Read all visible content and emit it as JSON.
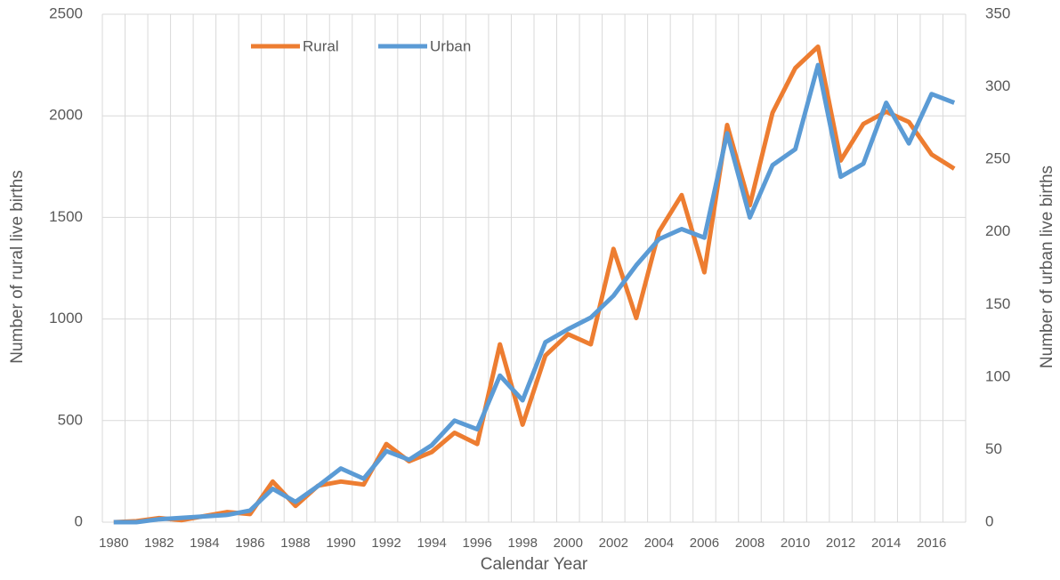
{
  "chart_data": {
    "type": "line",
    "x_label": "Calendar Year",
    "y_label": "Number of rural live births",
    "y2_label": "Number of urban live births",
    "categories": [
      "1980",
      null,
      "1982",
      null,
      "1984",
      null,
      "1986",
      null,
      "1988",
      null,
      "1990",
      null,
      "1992",
      null,
      "1994",
      null,
      "1996",
      null,
      "1998",
      null,
      "2000",
      null,
      "2002",
      null,
      "2004",
      null,
      "2006",
      null,
      "2008",
      null,
      "2010",
      null,
      "2012",
      null,
      "2014",
      null,
      "2016",
      null
    ],
    "series": [
      {
        "name": "Rural",
        "color": "#ed7d31",
        "axis": "y",
        "values": [
          0,
          5,
          20,
          10,
          30,
          50,
          40,
          200,
          80,
          180,
          200,
          185,
          385,
          300,
          345,
          440,
          385,
          875,
          480,
          820,
          925,
          875,
          1345,
          1005,
          1430,
          1610,
          1230,
          1955,
          1560,
          2015,
          2235,
          2340,
          1780,
          1960,
          2020,
          1970,
          1810,
          1740
        ]
      },
      {
        "name": "Urban",
        "color": "#5b9bd5",
        "axis": "y2",
        "values": [
          0,
          0,
          2,
          3,
          4,
          5,
          8,
          23,
          14,
          25,
          37,
          30,
          49,
          43,
          53,
          70,
          64,
          101,
          84,
          124,
          133,
          141,
          156,
          177,
          195,
          202,
          196,
          268,
          210,
          246,
          257,
          315,
          238,
          247,
          289,
          261,
          295,
          289
        ]
      }
    ],
    "ylim": [
      0,
      2500
    ],
    "yticks": [
      0,
      500,
      1000,
      1500,
      2000,
      2500
    ],
    "y2lim": [
      0,
      350
    ],
    "y2ticks": [
      0,
      50,
      100,
      150,
      200,
      250,
      300,
      350
    ],
    "grid": true,
    "legend": "top"
  }
}
